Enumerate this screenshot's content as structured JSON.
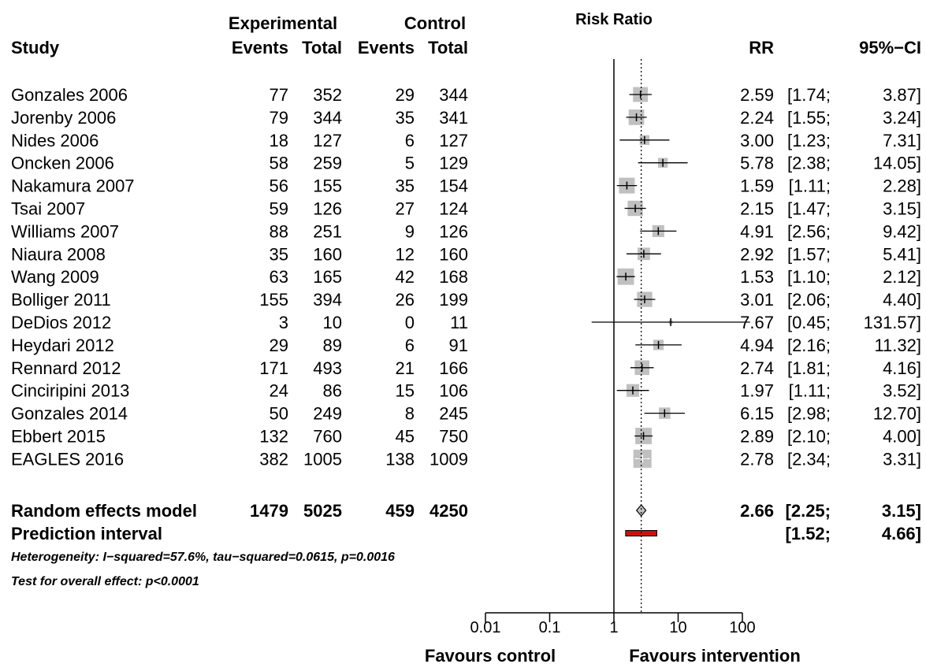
{
  "headers": {
    "plot_title": "Risk Ratio",
    "study": "Study",
    "experimental": "Experimental",
    "control": "Control",
    "events": "Events",
    "total": "Total",
    "rr": "RR",
    "ci": "95%−CI"
  },
  "chart_data": {
    "type": "forest",
    "axis": {
      "scale": "log",
      "ticks": [
        0.01,
        0.1,
        1,
        10,
        100
      ],
      "tick_labels": [
        "0.01",
        "0.1",
        "1",
        "10",
        "100"
      ],
      "range": [
        0.01,
        100
      ],
      "null_line": 1,
      "left_label": "Favours control",
      "right_label": "Favours intervention"
    },
    "studies": [
      {
        "name": "Gonzales 2006",
        "e_events": "77",
        "e_total": "352",
        "c_events": "29",
        "c_total": "344",
        "rr": 2.59,
        "lo": 1.74,
        "hi": 3.87,
        "rr_text": "2.59",
        "ci_text": "[1.74;",
        "ci_hi_text": "3.87]",
        "weight": 5.6
      },
      {
        "name": "Jorenby 2006",
        "e_events": "79",
        "e_total": "344",
        "c_events": "35",
        "c_total": "341",
        "rr": 2.24,
        "lo": 1.55,
        "hi": 3.24,
        "rr_text": "2.24",
        "ci_text": "[1.55;",
        "ci_hi_text": "3.24]",
        "weight": 6.1
      },
      {
        "name": "Nides 2006",
        "e_events": "18",
        "e_total": "127",
        "c_events": "6",
        "c_total": "127",
        "rr": 3.0,
        "lo": 1.23,
        "hi": 7.31,
        "rr_text": "3.00",
        "ci_text": "[1.23;",
        "ci_hi_text": "7.31]",
        "weight": 2.4
      },
      {
        "name": "Oncken 2006",
        "e_events": "58",
        "e_total": "259",
        "c_events": "5",
        "c_total": "129",
        "rr": 5.78,
        "lo": 2.38,
        "hi": 14.05,
        "rr_text": "5.78",
        "ci_text": "[2.38;",
        "ci_hi_text": "14.05]",
        "weight": 2.4
      },
      {
        "name": "Nakamura 2007",
        "e_events": "56",
        "e_total": "155",
        "c_events": "35",
        "c_total": "154",
        "rr": 1.59,
        "lo": 1.11,
        "hi": 2.28,
        "rr_text": "1.59",
        "ci_text": "[1.11;",
        "ci_hi_text": "2.28]",
        "weight": 6.3
      },
      {
        "name": "Tsai 2007",
        "e_events": "59",
        "e_total": "126",
        "c_events": "27",
        "c_total": "124",
        "rr": 2.15,
        "lo": 1.47,
        "hi": 3.15,
        "rr_text": "2.15",
        "ci_text": "[1.47;",
        "ci_hi_text": "3.15]",
        "weight": 5.9
      },
      {
        "name": "Williams 2007",
        "e_events": "88",
        "e_total": "251",
        "c_events": "9",
        "c_total": "126",
        "rr": 4.91,
        "lo": 2.56,
        "hi": 9.42,
        "rr_text": "4.91",
        "ci_text": "[2.56;",
        "ci_hi_text": "9.42]",
        "weight": 3.6
      },
      {
        "name": "Niaura 2008",
        "e_events": "35",
        "e_total": "160",
        "c_events": "12",
        "c_total": "160",
        "rr": 2.92,
        "lo": 1.57,
        "hi": 5.41,
        "rr_text": "2.92",
        "ci_text": "[1.57;",
        "ci_hi_text": "5.41]",
        "weight": 3.9
      },
      {
        "name": "Wang 2009",
        "e_events": "63",
        "e_total": "165",
        "c_events": "42",
        "c_total": "168",
        "rr": 1.53,
        "lo": 1.1,
        "hi": 2.12,
        "rr_text": "1.53",
        "ci_text": "[1.10;",
        "ci_hi_text": "2.12]",
        "weight": 6.8
      },
      {
        "name": "Bolliger 2011",
        "e_events": "155",
        "e_total": "394",
        "c_events": "26",
        "c_total": "199",
        "rr": 3.01,
        "lo": 2.06,
        "hi": 4.4,
        "rr_text": "3.01",
        "ci_text": "[2.06;",
        "ci_hi_text": "4.40]",
        "weight": 5.8
      },
      {
        "name": "DeDios 2012",
        "e_events": "3",
        "e_total": "10",
        "c_events": "0",
        "c_total": "11",
        "rr": 7.67,
        "lo": 0.45,
        "hi": 131.57,
        "rr_text": "7.67",
        "ci_text": "[0.45;",
        "ci_hi_text": "131.57]",
        "weight": 0.3
      },
      {
        "name": "Heydari 2012",
        "e_events": "29",
        "e_total": "89",
        "c_events": "6",
        "c_total": "91",
        "rr": 4.94,
        "lo": 2.16,
        "hi": 11.32,
        "rr_text": "4.94",
        "ci_text": "[2.16;",
        "ci_hi_text": "11.32]",
        "weight": 2.7
      },
      {
        "name": "Rennard 2012",
        "e_events": "171",
        "e_total": "493",
        "c_events": "21",
        "c_total": "166",
        "rr": 2.74,
        "lo": 1.81,
        "hi": 4.16,
        "rr_text": "2.74",
        "ci_text": "[1.81;",
        "ci_hi_text": "4.16]",
        "weight": 5.4
      },
      {
        "name": "Cinciripini 2013",
        "e_events": "24",
        "e_total": "86",
        "c_events": "15",
        "c_total": "106",
        "rr": 1.97,
        "lo": 1.11,
        "hi": 3.52,
        "rr_text": "1.97",
        "ci_text": "[1.11;",
        "ci_hi_text": "3.52]",
        "weight": 4.1
      },
      {
        "name": "Gonzales 2014",
        "e_events": "50",
        "e_total": "249",
        "c_events": "8",
        "c_total": "245",
        "rr": 6.15,
        "lo": 2.98,
        "hi": 12.7,
        "rr_text": "6.15",
        "ci_text": "[2.98;",
        "ci_hi_text": "12.70]",
        "weight": 3.3
      },
      {
        "name": "Ebbert 2015",
        "e_events": "132",
        "e_total": "760",
        "c_events": "45",
        "c_total": "750",
        "rr": 2.89,
        "lo": 2.1,
        "hi": 4.0,
        "rr_text": "2.89",
        "ci_text": "[2.10;",
        "ci_hi_text": "4.00]",
        "weight": 6.8
      },
      {
        "name": "EAGLES 2016",
        "e_events": "382",
        "e_total": "1005",
        "c_events": "138",
        "c_total": "1009",
        "rr": 2.78,
        "lo": 2.34,
        "hi": 3.31,
        "rr_text": "2.78",
        "ci_text": "[2.34;",
        "ci_hi_text": "3.31]",
        "weight": 8.3
      }
    ],
    "random_effects": {
      "name": "Random effects model",
      "e_events": "1479",
      "e_total": "5025",
      "c_events": "459",
      "c_total": "4250",
      "rr": 2.66,
      "lo": 2.25,
      "hi": 3.15,
      "rr_text": "2.66",
      "ci_text": "[2.25;",
      "ci_hi_text": "3.15]"
    },
    "prediction_interval": {
      "name": "Prediction interval",
      "lo": 1.52,
      "hi": 4.66,
      "ci_text": "[1.52;",
      "ci_hi_text": "4.66]"
    },
    "heterogeneity": "Heterogeneity: I−squared=57.6%, tau−squared=0.0615, p=0.0016",
    "overall_effect": "Test for overall effect:  p<0.0001",
    "colors": {
      "square": "#c0c0c0",
      "line": "#000000",
      "diamond": "#c0c0c0",
      "prediction": "#cc1111"
    }
  }
}
